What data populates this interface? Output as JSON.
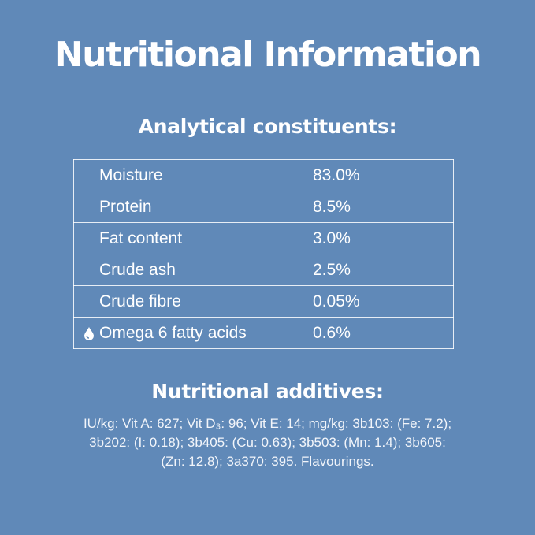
{
  "header": {
    "title": "Nutritional Information"
  },
  "analytical": {
    "heading": "Analytical constituents:",
    "rows": [
      [
        "Moisture",
        "83.0%"
      ],
      [
        "Protein",
        "8.5%"
      ],
      [
        "Fat content",
        "3.0%"
      ],
      [
        "Crude ash",
        "2.5%"
      ],
      [
        "Crude fibre",
        "0.05%"
      ],
      [
        "Omega 6 fatty acids",
        "0.6%"
      ]
    ]
  },
  "additives": {
    "heading": "Nutritional additives:",
    "lines": [
      "IU/kg: Vit A: 627; Vit D₃: 96; Vit E: 14; mg/kg: 3b103: (Fe: 7.2);",
      "3b202: (I: 0.18); 3b405: (Cu: 0.63); 3b503: (Mn: 1.4); 3b605:",
      "(Zn: 12.8); 3a370: 395. Flavourings."
    ]
  }
}
